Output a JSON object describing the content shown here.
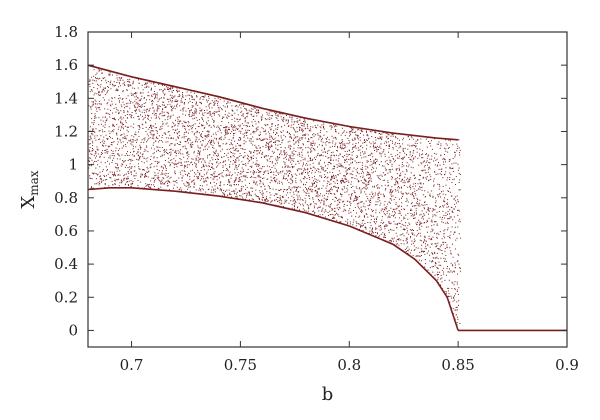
{
  "chart_data": {
    "type": "scatter",
    "title": "",
    "xlabel": "b",
    "ylabel": "X",
    "ylabel_subscript": "max",
    "xlim": [
      0.68,
      0.9
    ],
    "ylim": [
      -0.1,
      1.8
    ],
    "x_ticks": [
      0.7,
      0.75,
      0.8,
      0.85,
      0.9
    ],
    "x_tick_labels": [
      "0.7",
      "0.75",
      "0.8",
      "0.85",
      "0.9"
    ],
    "y_ticks": [
      0,
      0.2,
      0.4,
      0.6,
      0.8,
      1,
      1.2,
      1.4,
      1.6,
      1.8
    ],
    "y_tick_labels": [
      "0",
      "0.2",
      "0.4",
      "0.6",
      "0.8",
      "1",
      "1.2",
      "1.4",
      "1.6",
      "1.8"
    ],
    "grid": false,
    "legend": "none",
    "point_color": "#7a1f1f",
    "series": [
      {
        "description_of_shape": "bifurcation band",
        "upper_envelope": [
          [
            0.68,
            1.6
          ],
          [
            0.7,
            1.53
          ],
          [
            0.72,
            1.47
          ],
          [
            0.74,
            1.41
          ],
          [
            0.76,
            1.34
          ],
          [
            0.78,
            1.28
          ],
          [
            0.8,
            1.23
          ],
          [
            0.82,
            1.19
          ],
          [
            0.84,
            1.16
          ],
          [
            0.85,
            1.15
          ]
        ],
        "lower_envelope": [
          [
            0.68,
            0.85
          ],
          [
            0.69,
            0.86
          ],
          [
            0.7,
            0.86
          ],
          [
            0.72,
            0.84
          ],
          [
            0.74,
            0.81
          ],
          [
            0.76,
            0.77
          ],
          [
            0.78,
            0.71
          ],
          [
            0.8,
            0.63
          ],
          [
            0.82,
            0.52
          ],
          [
            0.83,
            0.43
          ],
          [
            0.84,
            0.3
          ],
          [
            0.845,
            0.2
          ],
          [
            0.85,
            0.0
          ]
        ],
        "flat_segment": [
          [
            0.85,
            0.0
          ],
          [
            0.9,
            0.0
          ]
        ]
      }
    ]
  }
}
